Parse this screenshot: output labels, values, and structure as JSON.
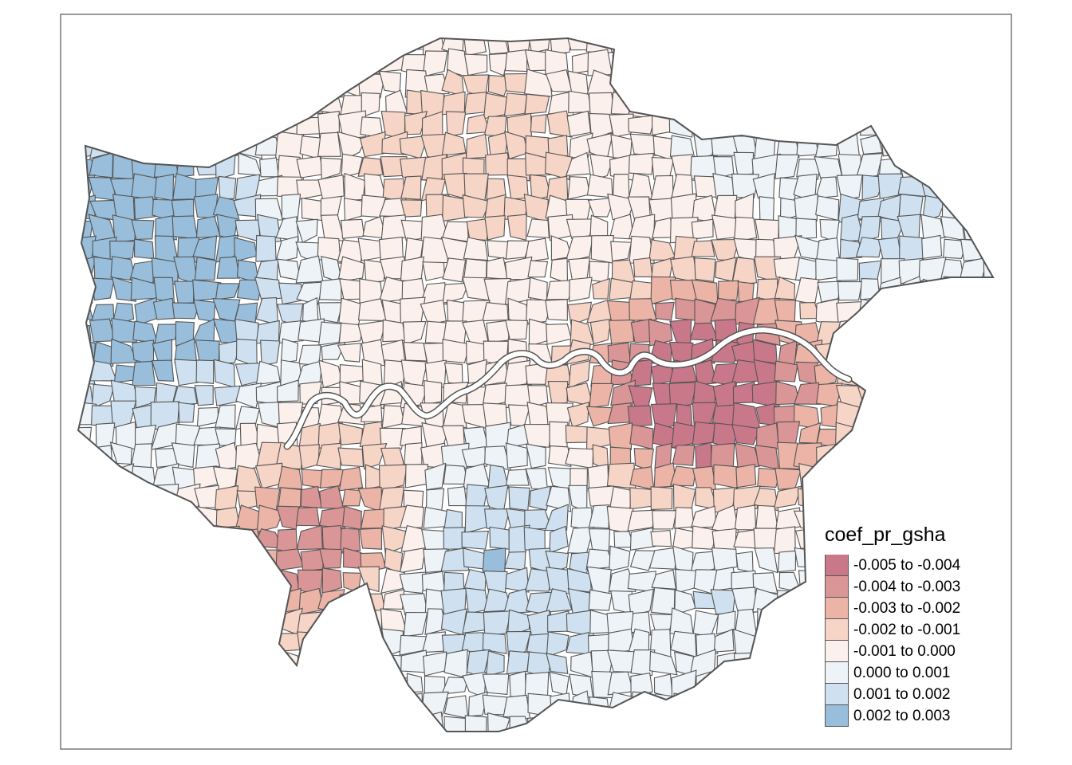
{
  "map": {
    "legend_title": "coef_pr_gsha",
    "classes": [
      {
        "label": "-0.005 to -0.004",
        "color": "#c9788a"
      },
      {
        "label": "-0.004 to -0.003",
        "color": "#da9596"
      },
      {
        "label": "-0.003 to -0.002",
        "color": "#ebb4a6"
      },
      {
        "label": "-0.002 to -0.001",
        "color": "#f6d4c6"
      },
      {
        "label": "-0.001 to 0.000",
        "color": "#fcf0ec"
      },
      {
        "label": "0.000 to 0.001",
        "color": "#eef3f8"
      },
      {
        "label": "0.001 to 0.002",
        "color": "#cfe1f0"
      },
      {
        "label": "0.002 to 0.003",
        "color": "#98bedb"
      }
    ],
    "border_color": "#555555",
    "river_color": "#ffffff"
  }
}
